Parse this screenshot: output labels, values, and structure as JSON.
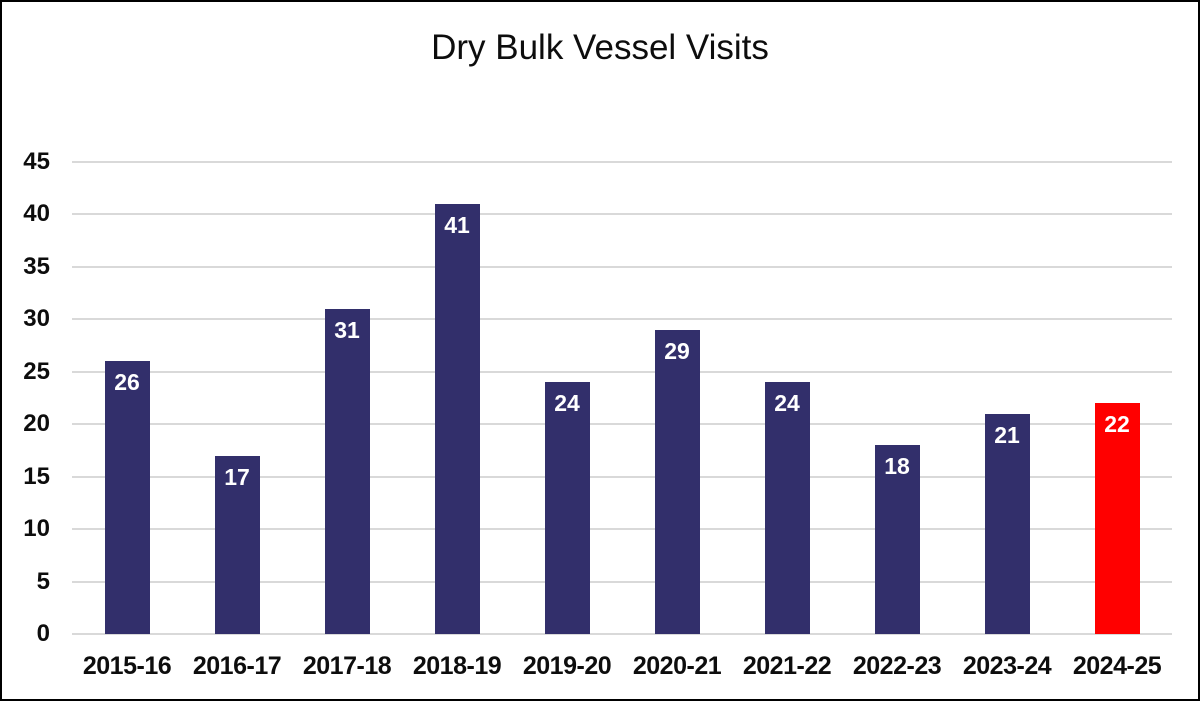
{
  "chart_data": {
    "type": "bar",
    "title": "Dry Bulk Vessel Visits",
    "categories": [
      "2015-16",
      "2016-17",
      "2017-18",
      "2018-19",
      "2019-20",
      "2020-21",
      "2021-22",
      "2022-23",
      "2023-24",
      "2024-25"
    ],
    "values": [
      26,
      17,
      31,
      41,
      24,
      29,
      24,
      18,
      21,
      22
    ],
    "bar_colors": [
      "#322F6B",
      "#322F6B",
      "#322F6B",
      "#322F6B",
      "#322F6B",
      "#322F6B",
      "#322F6B",
      "#322F6B",
      "#322F6B",
      "#FF0000"
    ],
    "data_label_color": "#FFFFFF",
    "xlabel": "",
    "ylabel": "",
    "ylim": [
      0,
      45
    ],
    "yticks": [
      0,
      5,
      10,
      15,
      20,
      25,
      30,
      35,
      40,
      45
    ],
    "grid": true,
    "gridline_color": "#D9D9D9",
    "legend_position": "none"
  },
  "colors": {
    "background": "#FFFFFF",
    "frame_border": "#000000",
    "title_text": "#0D0D0D",
    "axis_text": "#0D0D0D",
    "highlight_bar": "#FF0000",
    "default_bar": "#322F6B"
  }
}
